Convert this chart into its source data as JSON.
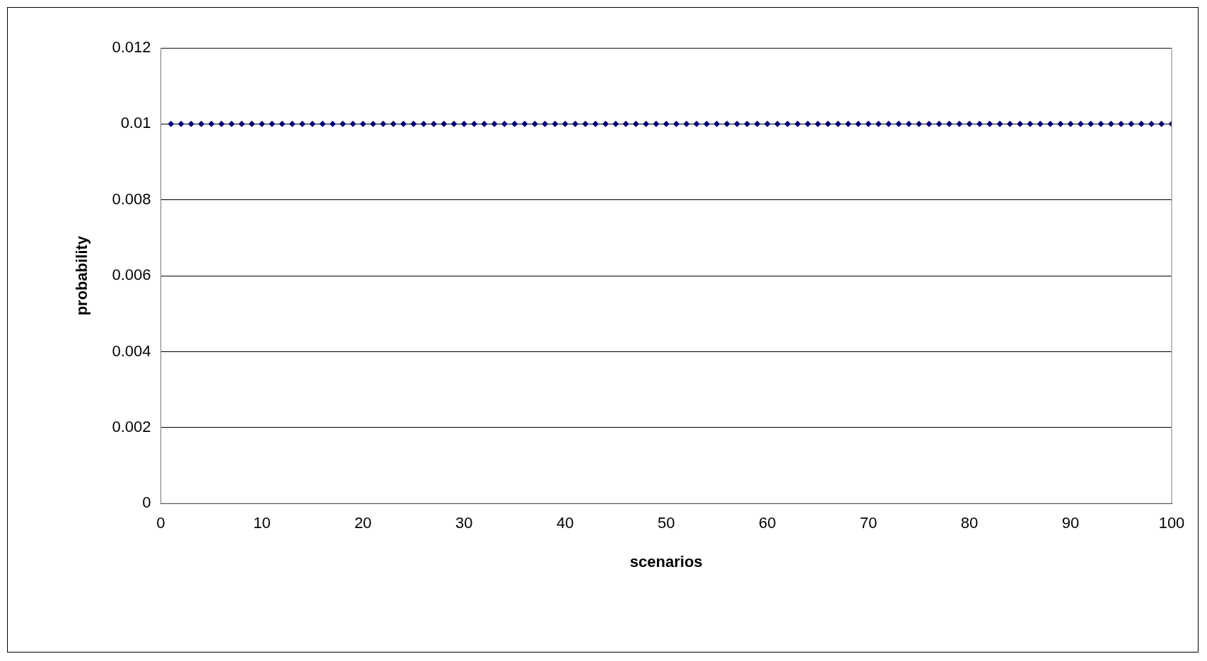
{
  "chart_data": {
    "type": "scatter",
    "xlabel": "scenarios",
    "ylabel": "probability",
    "x": [
      1,
      2,
      3,
      4,
      5,
      6,
      7,
      8,
      9,
      10,
      11,
      12,
      13,
      14,
      15,
      16,
      17,
      18,
      19,
      20,
      21,
      22,
      23,
      24,
      25,
      26,
      27,
      28,
      29,
      30,
      31,
      32,
      33,
      34,
      35,
      36,
      37,
      38,
      39,
      40,
      41,
      42,
      43,
      44,
      45,
      46,
      47,
      48,
      49,
      50,
      51,
      52,
      53,
      54,
      55,
      56,
      57,
      58,
      59,
      60,
      61,
      62,
      63,
      64,
      65,
      66,
      67,
      68,
      69,
      70,
      71,
      72,
      73,
      74,
      75,
      76,
      77,
      78,
      79,
      80,
      81,
      82,
      83,
      84,
      85,
      86,
      87,
      88,
      89,
      90,
      91,
      92,
      93,
      94,
      95,
      96,
      97,
      98,
      99,
      100
    ],
    "series": [
      {
        "color": "#000080",
        "values": [
          0.01,
          0.01,
          0.01,
          0.01,
          0.01,
          0.01,
          0.01,
          0.01,
          0.01,
          0.01,
          0.01,
          0.01,
          0.01,
          0.01,
          0.01,
          0.01,
          0.01,
          0.01,
          0.01,
          0.01,
          0.01,
          0.01,
          0.01,
          0.01,
          0.01,
          0.01,
          0.01,
          0.01,
          0.01,
          0.01,
          0.01,
          0.01,
          0.01,
          0.01,
          0.01,
          0.01,
          0.01,
          0.01,
          0.01,
          0.01,
          0.01,
          0.01,
          0.01,
          0.01,
          0.01,
          0.01,
          0.01,
          0.01,
          0.01,
          0.01,
          0.01,
          0.01,
          0.01,
          0.01,
          0.01,
          0.01,
          0.01,
          0.01,
          0.01,
          0.01,
          0.01,
          0.01,
          0.01,
          0.01,
          0.01,
          0.01,
          0.01,
          0.01,
          0.01,
          0.01,
          0.01,
          0.01,
          0.01,
          0.01,
          0.01,
          0.01,
          0.01,
          0.01,
          0.01,
          0.01,
          0.01,
          0.01,
          0.01,
          0.01,
          0.01,
          0.01,
          0.01,
          0.01,
          0.01,
          0.01,
          0.01,
          0.01,
          0.01,
          0.01,
          0.01,
          0.01,
          0.01,
          0.01,
          0.01,
          0.01
        ]
      }
    ],
    "xlim": [
      0,
      100
    ],
    "xticks": [
      0,
      10,
      20,
      30,
      40,
      50,
      60,
      70,
      80,
      90,
      100
    ],
    "ylim": [
      0,
      0.012
    ],
    "yticks": [
      0,
      0.002,
      0.004,
      0.006,
      0.008,
      0.01,
      0.012
    ],
    "grid": "y",
    "marker": "diamond",
    "legend": false
  }
}
